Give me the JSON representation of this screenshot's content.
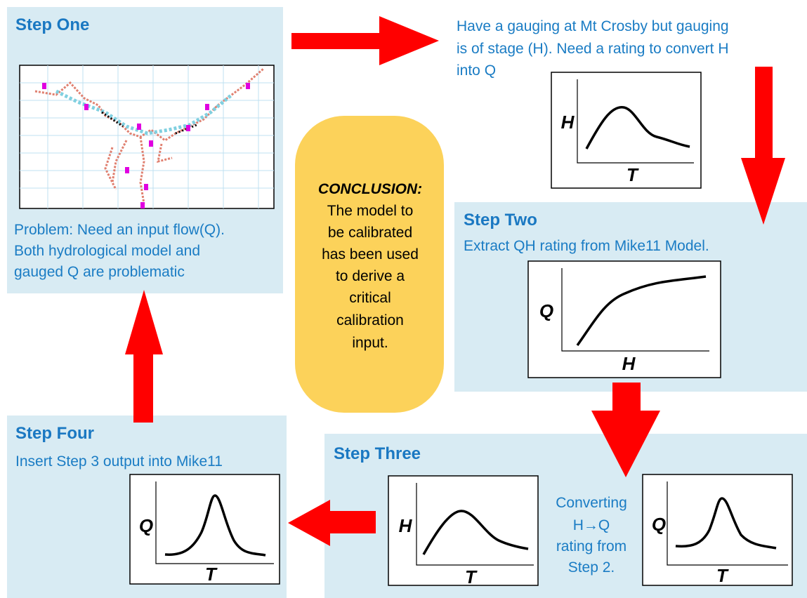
{
  "step_one": {
    "title": "Step One",
    "lines": [
      "Problem: Need an input flow(Q).",
      "Both hydrological model and",
      "gauged Q are problematic"
    ]
  },
  "gauging_note": {
    "lines": [
      "Have a gauging at Mt Crosby but gauging",
      "is of stage (H). Need a rating to convert H",
      "into Q"
    ]
  },
  "step_two": {
    "title": "Step Two",
    "text": "Extract QH rating from Mike11 Model."
  },
  "step_three": {
    "title": "Step Three",
    "lines": [
      "Converting",
      "H→Q",
      "rating from",
      "Step 2."
    ]
  },
  "step_four": {
    "title": "Step Four",
    "text": "Insert Step 3 output into Mike11"
  },
  "conclusion": {
    "heading": "CONCLUSION:",
    "lines": [
      "The model to",
      "be calibrated",
      "has been used",
      "to derive a",
      "critical",
      "calibration",
      "input."
    ]
  },
  "charts": [
    {
      "y_label": "H",
      "x_label": "T"
    },
    {
      "y_label": "Q",
      "x_label": "H"
    },
    {
      "y_label": "H",
      "x_label": "T"
    },
    {
      "y_label": "Q",
      "x_label": "T"
    },
    {
      "y_label": "Q",
      "x_label": "T"
    }
  ]
}
